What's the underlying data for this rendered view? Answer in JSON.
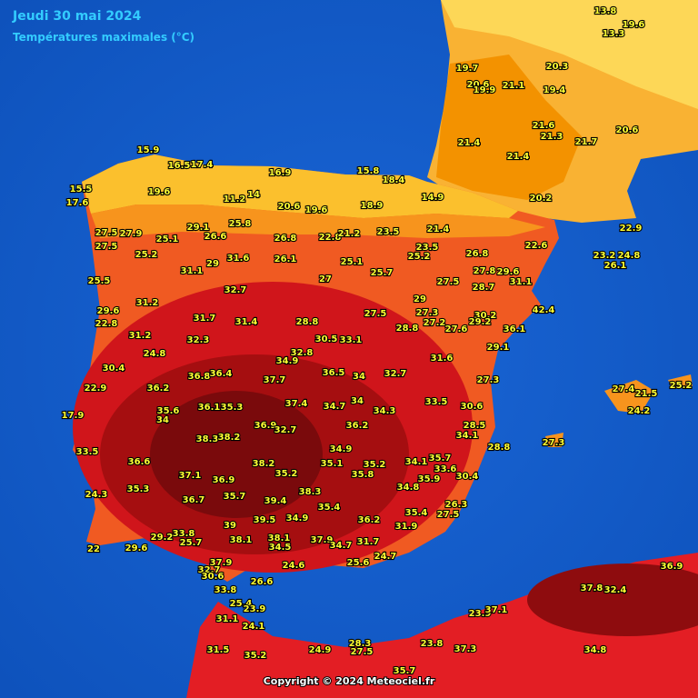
{
  "title": "Jeudi 30 mai 2024",
  "subtitle": "Températures maximales (°C)",
  "copyright": "Copyright © 2024 Meteociel.fr",
  "labels": [
    19.7,
    20.6,
    19.9,
    21.1,
    19.4,
    21.6,
    21.3,
    21.7,
    20.6,
    21.4,
    21.4,
    20.2,
    13.8,
    13.3,
    19.6,
    20.3,
    15.9,
    16.5,
    17.4,
    19.6,
    15.5,
    17.6,
    16.9,
    11.2,
    14,
    20.6,
    19.6,
    18.9,
    15.8,
    14.9,
    18.4,
    29.1,
    25.8,
    26.6,
    27.5,
    27.9,
    25.1,
    27.5,
    25.2,
    26.8,
    22.8,
    21.2,
    23.5,
    23.5,
    25.2,
    21.4,
    26.8,
    22.6,
    22.9,
    23.2,
    26.1,
    24.8,
    31.1,
    29,
    31.6,
    26.1,
    25.1,
    25.7,
    27.8,
    29.6,
    25.5,
    32.7,
    27,
    27.5,
    28.7,
    31.1,
    31.2,
    29,
    27.3,
    42.4,
    30.2,
    29.6,
    22.8,
    31.7,
    31.4,
    28.8,
    27.5,
    28.8,
    27.2,
    27.6,
    29.2,
    36.1,
    31.2,
    32.3,
    30.5,
    33.1,
    24.8,
    29.1,
    30.4,
    32.8,
    34.9,
    31.6,
    36.8,
    36.4,
    37.7,
    36.5,
    34,
    32.7,
    27.3,
    22.9,
    36.2,
    37.4,
    34.7,
    34,
    34.3,
    33.5,
    30.6,
    17.9,
    35.6,
    36.1,
    35.3,
    34,
    36.9,
    32.7,
    36.2,
    28.5,
    34.1,
    38.3,
    38.2,
    34.9,
    28.8,
    27.3,
    33.5,
    36.6,
    38.2,
    35.1,
    35.2,
    34.1,
    35.7,
    37.1,
    36.9,
    35.2,
    35.8,
    33.6,
    35.9,
    30.4,
    35.3,
    38.3,
    34.8,
    24.3,
    36.7,
    35.7,
    39.4,
    35.4,
    26.3,
    35.4,
    27.5,
    39,
    39.5,
    34.9,
    36.2,
    31.9,
    33.8,
    29.2,
    25.7,
    38.1,
    38.1,
    34.5,
    37.9,
    34.7,
    31.7,
    22,
    29.6,
    24.7,
    25.6,
    37.9,
    24.6,
    32.7,
    30.6,
    26.6,
    33.8,
    25.4,
    23.9,
    31.1,
    24.1,
    37.8,
    32.4,
    36.9,
    23.9,
    37.1,
    34.8,
    31.5,
    35.2,
    24.9,
    28.3,
    27.5,
    23.8,
    37.3,
    35.7,
    27.4,
    21.5,
    25.2,
    24.2
  ]
}
